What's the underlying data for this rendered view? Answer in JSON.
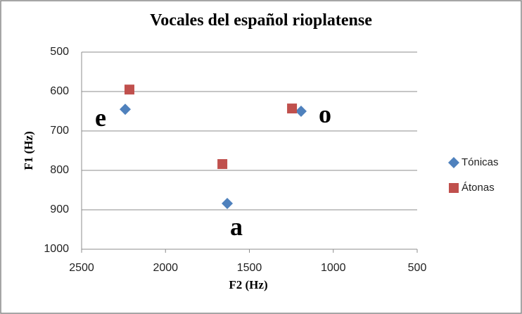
{
  "chart_data": {
    "type": "scatter",
    "title": "Vocales del español rioplatense",
    "x_label": "F2 (Hz)",
    "y_label": "F1 (Hz)",
    "xlim": [
      2500,
      500
    ],
    "xticks": [
      2500,
      2000,
      1500,
      1000,
      500
    ],
    "ylim": [
      1000,
      500
    ],
    "yticks": [
      500,
      600,
      700,
      800,
      900,
      1000
    ],
    "grid": true,
    "legend": "right",
    "series": [
      {
        "name": "Tónicas",
        "color": "#4f81bd",
        "marker": "diamond",
        "x": [
          2240,
          1192,
          1632
        ],
        "values": [
          645,
          650,
          884
        ]
      },
      {
        "name": "Átonas",
        "color": "#c0504d",
        "marker": "square",
        "x": [
          2215,
          1246,
          1661
        ],
        "values": [
          595,
          643,
          784
        ]
      }
    ],
    "annotations": [
      "e",
      "o",
      "a"
    ]
  }
}
